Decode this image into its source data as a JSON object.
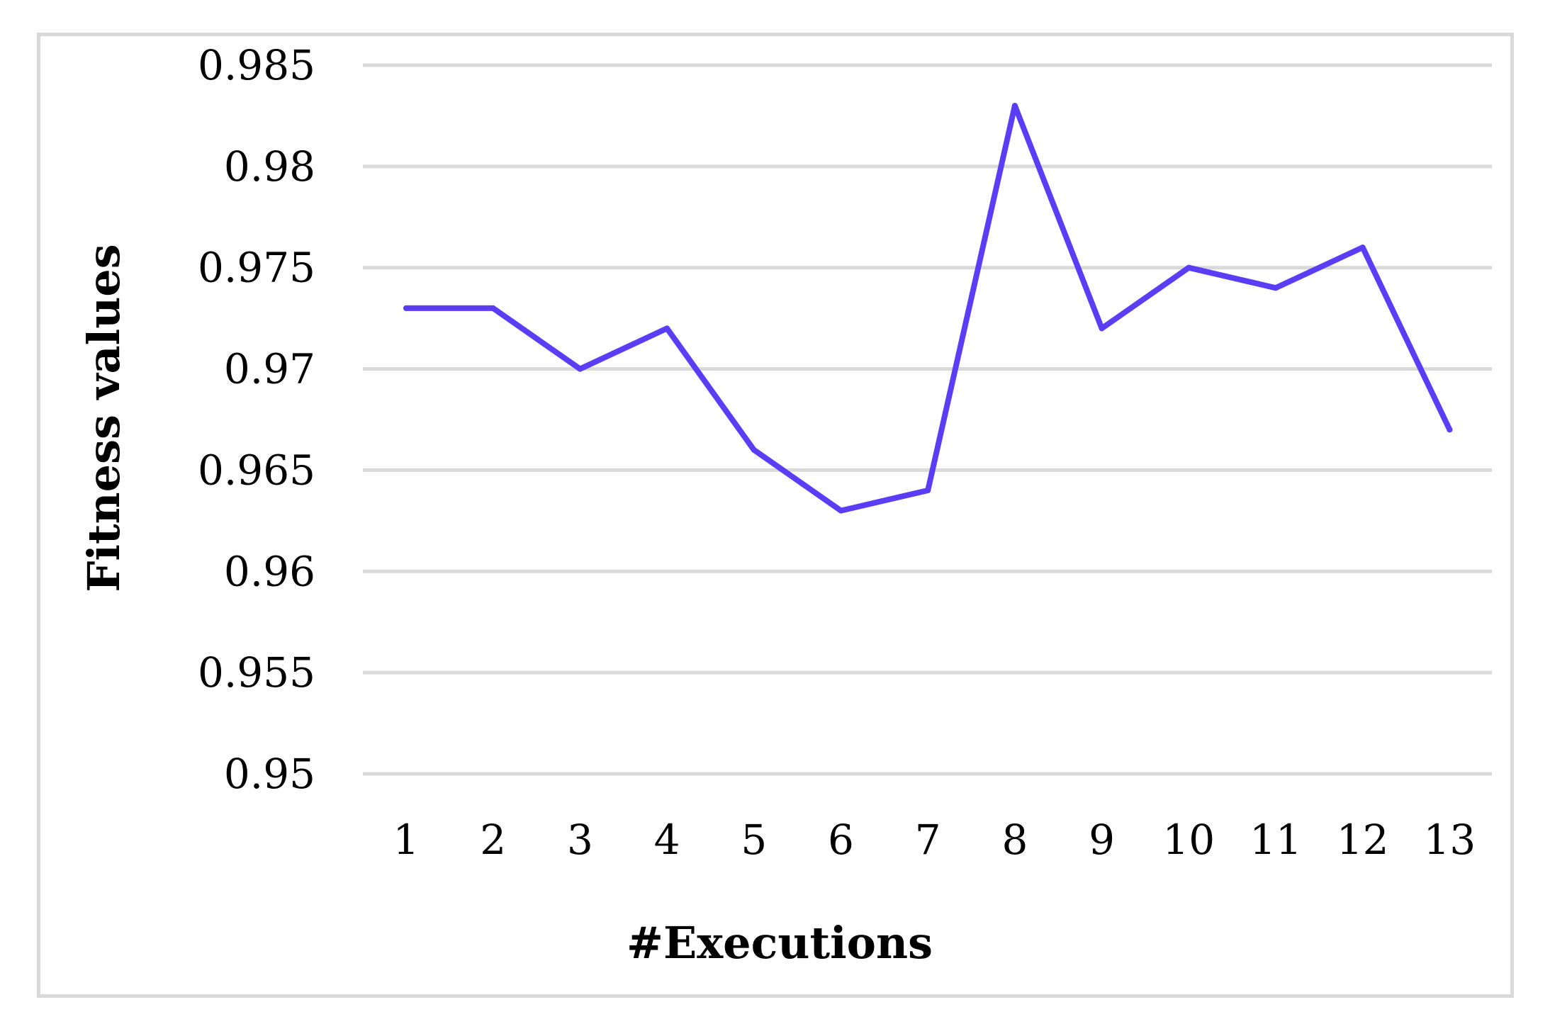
{
  "chart_data": {
    "type": "line",
    "title": "",
    "xlabel": "#Executions",
    "ylabel": "Fitness values",
    "categories": [
      "1",
      "2",
      "3",
      "4",
      "5",
      "6",
      "7",
      "8",
      "9",
      "10",
      "11",
      "12",
      "13"
    ],
    "series": [
      {
        "values": [
          0.973,
          0.973,
          0.97,
          0.972,
          0.966,
          0.963,
          0.964,
          0.983,
          0.972,
          0.975,
          0.974,
          0.976,
          0.967
        ],
        "color": "#5b3df5"
      }
    ],
    "ylim": [
      0.95,
      0.985
    ],
    "yticks": [
      "0.95",
      "0.955",
      "0.96",
      "0.965",
      "0.97",
      "0.975",
      "0.98",
      "0.985"
    ],
    "grid": true,
    "legend": "none"
  }
}
